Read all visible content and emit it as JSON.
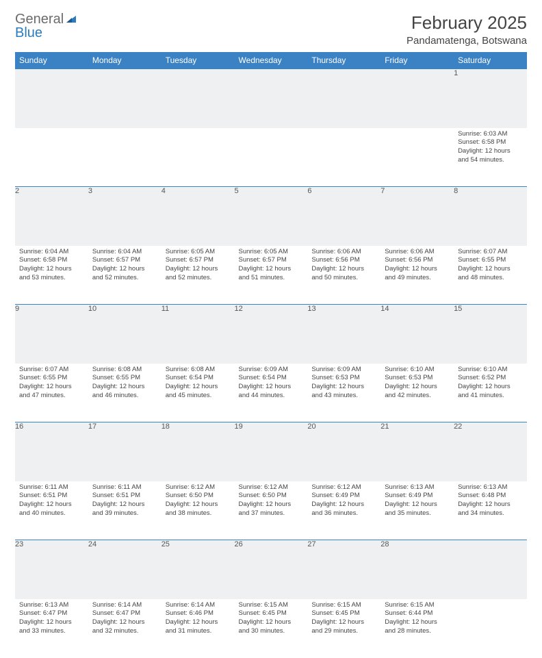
{
  "brand": {
    "name1": "General",
    "name2": "Blue"
  },
  "title": "February 2025",
  "location": "Pandamatenga, Botswana",
  "colors": {
    "header_bg": "#3b82c4",
    "header_text": "#ffffff",
    "daynum_bg": "#eef0f1",
    "cell_border": "#3b82c4",
    "text": "#444444",
    "brand_gray": "#6b6b6b",
    "brand_blue": "#2a7bbf"
  },
  "weekdays": [
    "Sunday",
    "Monday",
    "Tuesday",
    "Wednesday",
    "Thursday",
    "Friday",
    "Saturday"
  ],
  "weeks": [
    [
      null,
      null,
      null,
      null,
      null,
      null,
      {
        "n": "1",
        "sr": "Sunrise: 6:03 AM",
        "ss": "Sunset: 6:58 PM",
        "dl": "Daylight: 12 hours and 54 minutes."
      }
    ],
    [
      {
        "n": "2",
        "sr": "Sunrise: 6:04 AM",
        "ss": "Sunset: 6:58 PM",
        "dl": "Daylight: 12 hours and 53 minutes."
      },
      {
        "n": "3",
        "sr": "Sunrise: 6:04 AM",
        "ss": "Sunset: 6:57 PM",
        "dl": "Daylight: 12 hours and 52 minutes."
      },
      {
        "n": "4",
        "sr": "Sunrise: 6:05 AM",
        "ss": "Sunset: 6:57 PM",
        "dl": "Daylight: 12 hours and 52 minutes."
      },
      {
        "n": "5",
        "sr": "Sunrise: 6:05 AM",
        "ss": "Sunset: 6:57 PM",
        "dl": "Daylight: 12 hours and 51 minutes."
      },
      {
        "n": "6",
        "sr": "Sunrise: 6:06 AM",
        "ss": "Sunset: 6:56 PM",
        "dl": "Daylight: 12 hours and 50 minutes."
      },
      {
        "n": "7",
        "sr": "Sunrise: 6:06 AM",
        "ss": "Sunset: 6:56 PM",
        "dl": "Daylight: 12 hours and 49 minutes."
      },
      {
        "n": "8",
        "sr": "Sunrise: 6:07 AM",
        "ss": "Sunset: 6:55 PM",
        "dl": "Daylight: 12 hours and 48 minutes."
      }
    ],
    [
      {
        "n": "9",
        "sr": "Sunrise: 6:07 AM",
        "ss": "Sunset: 6:55 PM",
        "dl": "Daylight: 12 hours and 47 minutes."
      },
      {
        "n": "10",
        "sr": "Sunrise: 6:08 AM",
        "ss": "Sunset: 6:55 PM",
        "dl": "Daylight: 12 hours and 46 minutes."
      },
      {
        "n": "11",
        "sr": "Sunrise: 6:08 AM",
        "ss": "Sunset: 6:54 PM",
        "dl": "Daylight: 12 hours and 45 minutes."
      },
      {
        "n": "12",
        "sr": "Sunrise: 6:09 AM",
        "ss": "Sunset: 6:54 PM",
        "dl": "Daylight: 12 hours and 44 minutes."
      },
      {
        "n": "13",
        "sr": "Sunrise: 6:09 AM",
        "ss": "Sunset: 6:53 PM",
        "dl": "Daylight: 12 hours and 43 minutes."
      },
      {
        "n": "14",
        "sr": "Sunrise: 6:10 AM",
        "ss": "Sunset: 6:53 PM",
        "dl": "Daylight: 12 hours and 42 minutes."
      },
      {
        "n": "15",
        "sr": "Sunrise: 6:10 AM",
        "ss": "Sunset: 6:52 PM",
        "dl": "Daylight: 12 hours and 41 minutes."
      }
    ],
    [
      {
        "n": "16",
        "sr": "Sunrise: 6:11 AM",
        "ss": "Sunset: 6:51 PM",
        "dl": "Daylight: 12 hours and 40 minutes."
      },
      {
        "n": "17",
        "sr": "Sunrise: 6:11 AM",
        "ss": "Sunset: 6:51 PM",
        "dl": "Daylight: 12 hours and 39 minutes."
      },
      {
        "n": "18",
        "sr": "Sunrise: 6:12 AM",
        "ss": "Sunset: 6:50 PM",
        "dl": "Daylight: 12 hours and 38 minutes."
      },
      {
        "n": "19",
        "sr": "Sunrise: 6:12 AM",
        "ss": "Sunset: 6:50 PM",
        "dl": "Daylight: 12 hours and 37 minutes."
      },
      {
        "n": "20",
        "sr": "Sunrise: 6:12 AM",
        "ss": "Sunset: 6:49 PM",
        "dl": "Daylight: 12 hours and 36 minutes."
      },
      {
        "n": "21",
        "sr": "Sunrise: 6:13 AM",
        "ss": "Sunset: 6:49 PM",
        "dl": "Daylight: 12 hours and 35 minutes."
      },
      {
        "n": "22",
        "sr": "Sunrise: 6:13 AM",
        "ss": "Sunset: 6:48 PM",
        "dl": "Daylight: 12 hours and 34 minutes."
      }
    ],
    [
      {
        "n": "23",
        "sr": "Sunrise: 6:13 AM",
        "ss": "Sunset: 6:47 PM",
        "dl": "Daylight: 12 hours and 33 minutes."
      },
      {
        "n": "24",
        "sr": "Sunrise: 6:14 AM",
        "ss": "Sunset: 6:47 PM",
        "dl": "Daylight: 12 hours and 32 minutes."
      },
      {
        "n": "25",
        "sr": "Sunrise: 6:14 AM",
        "ss": "Sunset: 6:46 PM",
        "dl": "Daylight: 12 hours and 31 minutes."
      },
      {
        "n": "26",
        "sr": "Sunrise: 6:15 AM",
        "ss": "Sunset: 6:45 PM",
        "dl": "Daylight: 12 hours and 30 minutes."
      },
      {
        "n": "27",
        "sr": "Sunrise: 6:15 AM",
        "ss": "Sunset: 6:45 PM",
        "dl": "Daylight: 12 hours and 29 minutes."
      },
      {
        "n": "28",
        "sr": "Sunrise: 6:15 AM",
        "ss": "Sunset: 6:44 PM",
        "dl": "Daylight: 12 hours and 28 minutes."
      },
      null
    ]
  ]
}
